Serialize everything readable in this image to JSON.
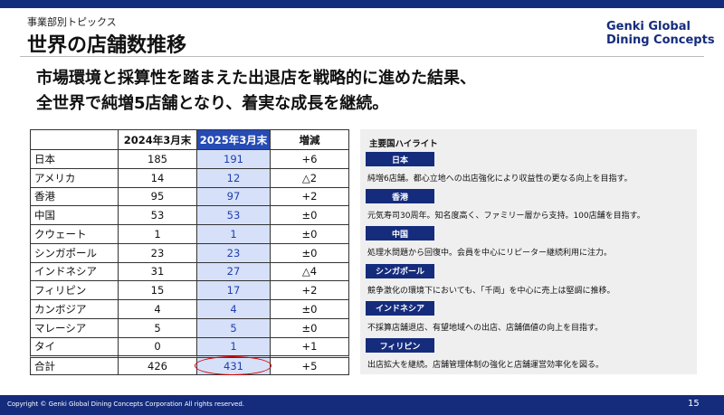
{
  "header": {
    "section": "事業部別トピックス",
    "title": "世界の店舗数推移",
    "logo": [
      "Genki Global",
      "Dining Concepts"
    ]
  },
  "lead": [
    "市場環境と採算性を踏まえた出退店を戦略的に進めた結果、",
    "全世界で純増5店舗となり、着実な成長を継続。"
  ],
  "table": {
    "columns": [
      "2024年3月末",
      "2025年3月末",
      "増減"
    ],
    "rows": [
      [
        "日本",
        "185",
        "191",
        "+6"
      ],
      [
        "アメリカ",
        "14",
        "12",
        "△2"
      ],
      [
        "香港",
        "95",
        "97",
        "+2"
      ],
      [
        "中国",
        "53",
        "53",
        "±0"
      ],
      [
        "クウェート",
        "1",
        "1",
        "±0"
      ],
      [
        "シンガポール",
        "23",
        "23",
        "±0"
      ],
      [
        "インドネシア",
        "31",
        "27",
        "△4"
      ],
      [
        "フィリピン",
        "15",
        "17",
        "+2"
      ],
      [
        "カンボジア",
        "4",
        "4",
        "±0"
      ],
      [
        "マレーシア",
        "5",
        "5",
        "±0"
      ],
      [
        "タイ",
        "0",
        "1",
        "+1"
      ],
      [
        "合計",
        "426",
        "431",
        "+5"
      ]
    ]
  },
  "highlights": {
    "title": "主要国ハイライト",
    "items": [
      {
        "country": "日本",
        "text": "純増6店舗。都心立地への出店強化により収益性の更なる向上を目指す。"
      },
      {
        "country": "香港",
        "text": "元気寿司30周年。知名度高く、ファミリー層から支持。100店舗を目指す。"
      },
      {
        "country": "中国",
        "text": "処理水問題から回復中。会員を中心にリピーター継続利用に注力。"
      },
      {
        "country": "シンガポール",
        "text": "競争激化の環境下においても、「千両」を中心に売上は堅調に推移。"
      },
      {
        "country": "インドネシア",
        "text": "不採算店舗退店、有望地域への出店、店舗価値の向上を目指す。"
      },
      {
        "country": "フィリピン",
        "text": "出店拡大を継続。店舗管理体制の強化と店舗運営効率化を図る。"
      }
    ]
  },
  "footer": {
    "copyright": "Copyright © Genki Global Dining Concepts Corporation All rights reserved.",
    "page": "15"
  }
}
